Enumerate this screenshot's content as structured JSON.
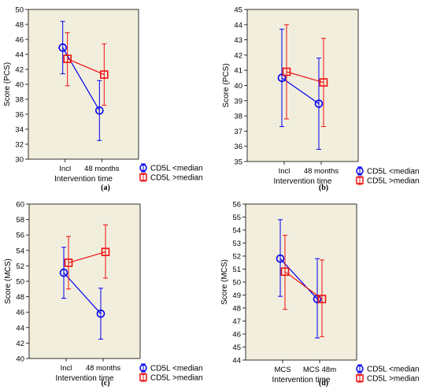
{
  "chart_data": [
    {
      "type": "line",
      "caption": "(a)",
      "categories": [
        "Incl",
        "48 months"
      ],
      "xlabel": "Intervention time",
      "ylabel": "Score (PCS)",
      "ylim": [
        30,
        50
      ],
      "yticks": [
        30,
        32,
        34,
        36,
        38,
        40,
        42,
        44,
        46,
        48,
        50
      ],
      "series": [
        {
          "name": "CD5L <median",
          "color": "#0000ee",
          "marker": "circle",
          "values": [
            44.9,
            36.5
          ],
          "lower": [
            41.4,
            32.5
          ],
          "upper": [
            48.4,
            40.5
          ]
        },
        {
          "name": "CD5L >median",
          "color": "#ee1111",
          "marker": "square",
          "values": [
            43.4,
            41.3
          ],
          "lower": [
            39.8,
            37.2
          ],
          "upper": [
            46.9,
            45.4
          ]
        }
      ]
    },
    {
      "type": "line",
      "caption": "(b)",
      "categories": [
        "Incl",
        "48 months"
      ],
      "xlabel": "Intervention time",
      "ylabel": "Score (PCS)",
      "ylim": [
        35,
        45
      ],
      "yticks": [
        35,
        36,
        37,
        38,
        39,
        40,
        41,
        42,
        43,
        44,
        45
      ],
      "series": [
        {
          "name": "CD5L <median",
          "color": "#0000ee",
          "marker": "circle",
          "values": [
            40.5,
            38.8
          ],
          "lower": [
            37.3,
            35.8
          ],
          "upper": [
            43.7,
            41.8
          ]
        },
        {
          "name": "CD5L >median",
          "color": "#ee1111",
          "marker": "square",
          "values": [
            40.9,
            40.2
          ],
          "lower": [
            37.8,
            37.3
          ],
          "upper": [
            44.0,
            43.1
          ]
        }
      ]
    },
    {
      "type": "line",
      "caption": "(c)",
      "categories": [
        "Incl",
        "48 months"
      ],
      "xlabel": "Intervention time",
      "ylabel": "Score (MCS)",
      "ylim": [
        40,
        60
      ],
      "yticks": [
        40,
        42,
        44,
        46,
        48,
        50,
        52,
        54,
        56,
        58,
        60
      ],
      "series": [
        {
          "name": "CD5L <median",
          "color": "#0000ee",
          "marker": "circle",
          "values": [
            51.1,
            45.8
          ],
          "lower": [
            47.8,
            42.5
          ],
          "upper": [
            54.4,
            49.1
          ]
        },
        {
          "name": "CD5L >median",
          "color": "#ee1111",
          "marker": "square",
          "values": [
            52.4,
            53.8
          ],
          "lower": [
            49.0,
            50.4
          ],
          "upper": [
            55.8,
            57.3
          ]
        }
      ]
    },
    {
      "type": "line",
      "caption": "(d)",
      "categories": [
        "MCS",
        "MCS 48m"
      ],
      "xlabel": "Intervention time",
      "ylabel": "Score (MCS)",
      "ylim": [
        44,
        56
      ],
      "yticks": [
        44,
        45,
        46,
        47,
        48,
        49,
        50,
        51,
        52,
        53,
        54,
        55,
        56
      ],
      "series": [
        {
          "name": "CD5L <median",
          "color": "#0000ee",
          "marker": "circle",
          "values": [
            51.8,
            48.7
          ],
          "lower": [
            48.9,
            45.7
          ],
          "upper": [
            54.8,
            51.8
          ]
        },
        {
          "name": "CD5L >median",
          "color": "#ee1111",
          "marker": "square",
          "values": [
            50.8,
            48.7
          ],
          "lower": [
            47.9,
            45.8
          ],
          "upper": [
            53.6,
            51.7
          ]
        }
      ]
    }
  ]
}
